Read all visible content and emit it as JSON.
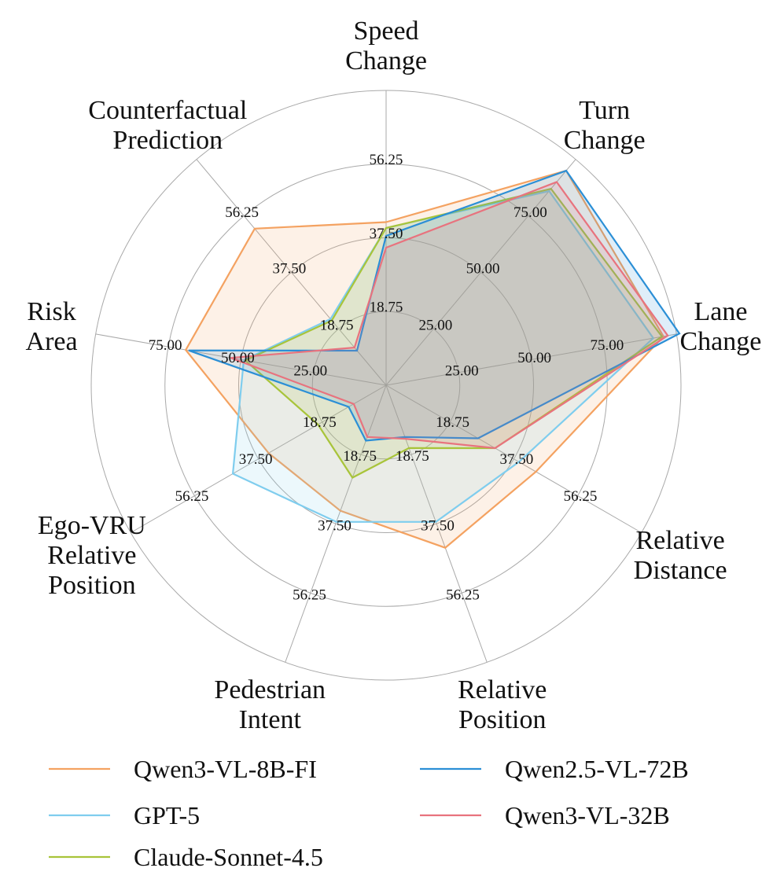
{
  "chart_data": {
    "type": "radar",
    "title": "",
    "axes": [
      {
        "name": "Speed Change",
        "lines": [
          "Speed",
          "Change"
        ],
        "ticks": [
          "18.75",
          "37.50",
          "56.25"
        ],
        "max": 75
      },
      {
        "name": "Turn Change",
        "lines": [
          "Turn",
          "Change"
        ],
        "ticks": [
          "25.00",
          "50.00",
          "75.00"
        ],
        "max": 100
      },
      {
        "name": "Lane Change",
        "lines": [
          "Lane",
          "Change"
        ],
        "ticks": [
          "25.00",
          "50.00",
          "75.00"
        ],
        "max": 100
      },
      {
        "name": "Relative Distance",
        "lines": [
          "Relative",
          "Distance"
        ],
        "ticks": [
          "18.75",
          "37.50",
          "56.25"
        ],
        "max": 75
      },
      {
        "name": "Relative Position",
        "lines": [
          "Relative",
          "Position"
        ],
        "ticks": [
          "18.75",
          "37.50",
          "56.25"
        ],
        "max": 75
      },
      {
        "name": "Pedestrian Intent",
        "lines": [
          "Pedestrian",
          "Intent"
        ],
        "ticks": [
          "18.75",
          "37.50",
          "56.25"
        ],
        "max": 75
      },
      {
        "name": "Ego-VRU Relative Position",
        "lines": [
          "Ego-VRU",
          "Relative",
          "Position"
        ],
        "ticks": [
          "18.75",
          "37.50",
          "56.25"
        ],
        "max": 75
      },
      {
        "name": "Risk Area",
        "lines": [
          "Risk",
          "Area"
        ],
        "ticks": [
          "25.00",
          "50.00",
          "75.00"
        ],
        "max": 100
      },
      {
        "name": "Counterfactual Prediction",
        "lines": [
          "Counterfactual",
          "Prediction"
        ],
        "ticks": [
          "18.75",
          "37.50",
          "56.25"
        ],
        "max": 75
      }
    ],
    "series": [
      {
        "name": "Qwen3-VL-8B-FI",
        "color": "#f4a261",
        "values": [
          41.5,
          95.0,
          95.5,
          44.0,
          44.0,
          34.0,
          34.5,
          69.0,
          52.0
        ]
      },
      {
        "name": "GPT-5",
        "color": "#7fcdee",
        "values": [
          40.0,
          86.0,
          92.0,
          39.0,
          37.0,
          37.0,
          45.0,
          49.0,
          22.0
        ]
      },
      {
        "name": "Claude-Sonnet-4.5",
        "color": "#a8c43a",
        "values": [
          40.0,
          87.0,
          95.0,
          32.0,
          17.0,
          25.0,
          20.0,
          48.5,
          21.5
        ]
      },
      {
        "name": "Qwen2.5-VL-72B",
        "color": "#2b8fd6",
        "values": [
          38.0,
          95.0,
          101.0,
          27.0,
          14.0,
          15.0,
          11.0,
          68.0,
          11.5
        ]
      },
      {
        "name": "Qwen3-VL-32B",
        "color": "#e8737e",
        "values": [
          35.0,
          90.0,
          97.0,
          32.0,
          14.5,
          14.0,
          9.5,
          53.5,
          12.5
        ]
      }
    ],
    "grid": true,
    "legend": {
      "position": "bottom",
      "columns": 2
    }
  }
}
